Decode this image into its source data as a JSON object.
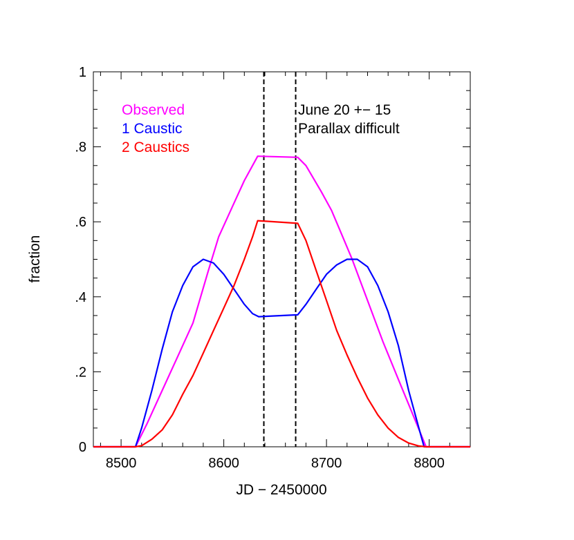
{
  "chart_data": {
    "type": "line",
    "xlabel": "JD − 2450000",
    "ylabel": "fraction",
    "xlim": [
      8473,
      8840
    ],
    "ylim": [
      0,
      1
    ],
    "x_ticks": [
      8500,
      8600,
      8700,
      8800
    ],
    "y_ticks": [
      0,
      0.2,
      0.4,
      0.6,
      0.8,
      1
    ],
    "y_tick_labels": [
      "0",
      ".2",
      ".4",
      ".6",
      ".8",
      "1"
    ],
    "grid": false,
    "legend_position": "top-left",
    "series": [
      {
        "name": "Observed",
        "color": "#ff00ff",
        "points": [
          [
            8473,
            0
          ],
          [
            8514,
            0
          ],
          [
            8525,
            0.06
          ],
          [
            8540,
            0.15
          ],
          [
            8555,
            0.24
          ],
          [
            8570,
            0.33
          ],
          [
            8585,
            0.47
          ],
          [
            8595,
            0.56
          ],
          [
            8610,
            0.65
          ],
          [
            8620,
            0.71
          ],
          [
            8633,
            0.775
          ],
          [
            8672,
            0.772
          ],
          [
            8680,
            0.75
          ],
          [
            8695,
            0.68
          ],
          [
            8705,
            0.63
          ],
          [
            8715,
            0.565
          ],
          [
            8725,
            0.5
          ],
          [
            8740,
            0.39
          ],
          [
            8755,
            0.28
          ],
          [
            8770,
            0.18
          ],
          [
            8785,
            0.08
          ],
          [
            8797,
            0
          ],
          [
            8840,
            0
          ]
        ]
      },
      {
        "name": "1 Caustic",
        "color": "#0000ff",
        "points": [
          [
            8473,
            0
          ],
          [
            8514,
            0
          ],
          [
            8520,
            0.05
          ],
          [
            8530,
            0.15
          ],
          [
            8540,
            0.26
          ],
          [
            8550,
            0.36
          ],
          [
            8560,
            0.43
          ],
          [
            8570,
            0.48
          ],
          [
            8580,
            0.5
          ],
          [
            8590,
            0.49
          ],
          [
            8600,
            0.46
          ],
          [
            8610,
            0.42
          ],
          [
            8620,
            0.38
          ],
          [
            8628,
            0.355
          ],
          [
            8634,
            0.347
          ],
          [
            8672,
            0.352
          ],
          [
            8680,
            0.38
          ],
          [
            8690,
            0.42
          ],
          [
            8700,
            0.46
          ],
          [
            8710,
            0.485
          ],
          [
            8720,
            0.5
          ],
          [
            8730,
            0.5
          ],
          [
            8740,
            0.48
          ],
          [
            8750,
            0.43
          ],
          [
            8760,
            0.36
          ],
          [
            8770,
            0.27
          ],
          [
            8780,
            0.15
          ],
          [
            8790,
            0.05
          ],
          [
            8795,
            0
          ],
          [
            8840,
            0
          ]
        ]
      },
      {
        "name": "2 Caustics",
        "color": "#ff0000",
        "points": [
          [
            8473,
            0
          ],
          [
            8514,
            0
          ],
          [
            8520,
            0.003
          ],
          [
            8530,
            0.02
          ],
          [
            8540,
            0.045
          ],
          [
            8550,
            0.085
          ],
          [
            8560,
            0.14
          ],
          [
            8570,
            0.19
          ],
          [
            8580,
            0.25
          ],
          [
            8590,
            0.31
          ],
          [
            8600,
            0.37
          ],
          [
            8610,
            0.43
          ],
          [
            8620,
            0.5
          ],
          [
            8628,
            0.56
          ],
          [
            8633,
            0.603
          ],
          [
            8672,
            0.596
          ],
          [
            8680,
            0.55
          ],
          [
            8690,
            0.47
          ],
          [
            8700,
            0.39
          ],
          [
            8710,
            0.31
          ],
          [
            8720,
            0.245
          ],
          [
            8730,
            0.185
          ],
          [
            8740,
            0.13
          ],
          [
            8750,
            0.085
          ],
          [
            8760,
            0.05
          ],
          [
            8770,
            0.025
          ],
          [
            8780,
            0.01
          ],
          [
            8790,
            0.002
          ],
          [
            8797,
            0
          ],
          [
            8840,
            0
          ]
        ]
      }
    ],
    "vertical_lines": [
      8639,
      8670
    ],
    "annotations": [
      "June 20 +− 15",
      "Parallax difficult"
    ]
  }
}
